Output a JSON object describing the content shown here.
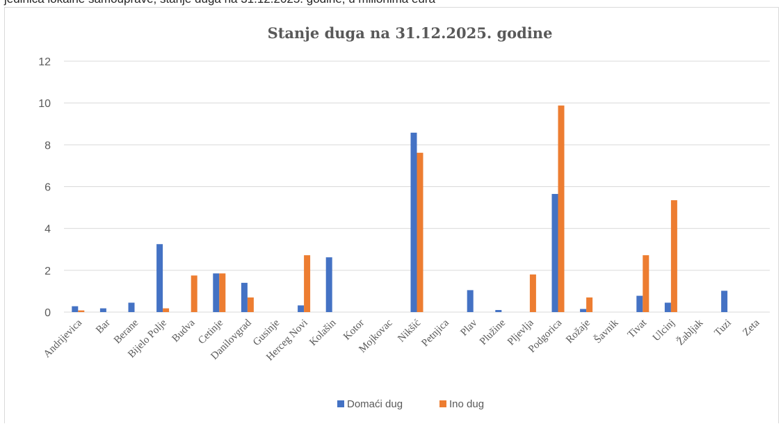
{
  "page_top_text": "jedinica lokalne samouprave, stanje duga na 31.12.2025. godine, u milionima eura",
  "chart_data": {
    "type": "bar",
    "title": "Stanje duga na 31.12.2025. godine",
    "xlabel": "",
    "ylabel": "",
    "ylim": [
      0,
      12
    ],
    "yticks": [
      0,
      2,
      4,
      6,
      8,
      10,
      12
    ],
    "grid": true,
    "legend_position": "bottom",
    "categories": [
      "Andrijevica",
      "Bar",
      "Berane",
      "Bijelo Polje",
      "Budva",
      "Cetinje",
      "Danilovgrad",
      "Gusinje",
      "Herceg Novi",
      "Kolašin",
      "Kotor",
      "Mojkovac",
      "Nikšić",
      "Petnjica",
      "Plav",
      "Plužine",
      "Pljevlja",
      "Podgorica",
      "Rožaje",
      "Šavnik",
      "Tivat",
      "Ulcinj",
      "Žabljak",
      "Tuzi",
      "Zeta"
    ],
    "series": [
      {
        "name": "Domaći dug",
        "color": "#4472c4",
        "values": [
          0.28,
          0.18,
          0.45,
          3.25,
          0,
          1.85,
          1.4,
          0,
          0.32,
          2.62,
          0,
          0,
          8.58,
          0,
          1.05,
          0.1,
          0,
          5.65,
          0.15,
          0,
          0.78,
          0.45,
          0,
          1.02,
          0
        ]
      },
      {
        "name": "Ino dug",
        "color": "#ed7d31",
        "values": [
          0.08,
          0,
          0,
          0.18,
          1.75,
          1.85,
          0.7,
          0,
          2.72,
          0,
          0,
          0,
          7.62,
          0,
          0,
          0,
          1.8,
          9.88,
          0.7,
          0,
          2.72,
          5.35,
          0,
          0,
          0
        ]
      }
    ]
  }
}
